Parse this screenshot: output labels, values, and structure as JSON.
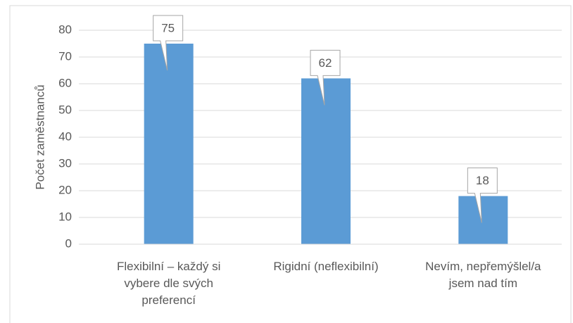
{
  "chart_data": {
    "type": "bar",
    "y_label": "Počet zaměstnanců",
    "categories": [
      "Flexibilní – každý si vybere dle svých preferencí",
      "Rigidní (neflexibilní)",
      "Nevím, nepřemýšlel/a jsem nad tím"
    ],
    "values": [
      75,
      62,
      18
    ],
    "color": "#5b9bd5",
    "ylim": [
      0,
      80
    ],
    "yticks": [
      0,
      10,
      20,
      30,
      40,
      50,
      60,
      70,
      80
    ],
    "grid": true
  }
}
